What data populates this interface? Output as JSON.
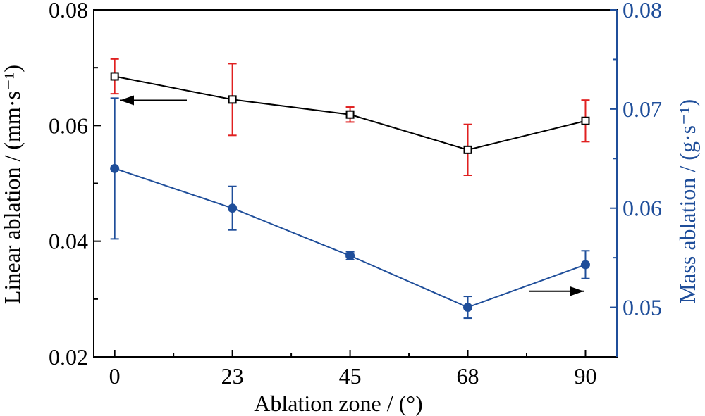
{
  "chart_data": {
    "type": "line",
    "xlabel": "Ablation zone / (°)",
    "ylabel_left": "Linear ablation / (mm·s⁻¹)",
    "ylabel_right": "Mass ablation / (g·s⁻¹)",
    "x_ticks": [
      "0",
      "23",
      "45",
      "68",
      "90"
    ],
    "xlim": [
      -4,
      96
    ],
    "ylim_left": [
      0.02,
      0.08
    ],
    "ylim_right": [
      0.045,
      0.08
    ],
    "y_ticks_left": [
      "0.02",
      "0.04",
      "0.06",
      "0.08"
    ],
    "y_ticks_right": [
      "0.05",
      "0.06",
      "0.07",
      "0.08"
    ],
    "grid": false,
    "series": [
      {
        "axis": "left",
        "marker": "open-square",
        "line_color": "#000000",
        "error_color": "#e02020",
        "x": [
          0,
          22.5,
          45,
          67.5,
          90
        ],
        "y": [
          0.0685,
          0.0645,
          0.0619,
          0.0558,
          0.0608
        ],
        "err": [
          0.003,
          0.0062,
          0.0013,
          0.0044,
          0.0036
        ]
      },
      {
        "axis": "right",
        "marker": "filled-circle",
        "line_color": "#1f4e9a",
        "error_color": "#1f4e9a",
        "x": [
          0,
          22.5,
          45,
          67.5,
          90
        ],
        "y": [
          0.064,
          0.06,
          0.0552,
          0.05,
          0.0543
        ],
        "err": [
          0.0071,
          0.0022,
          0.0004,
          0.0011,
          0.0014
        ]
      }
    ],
    "arrows": [
      {
        "series": 0,
        "direction": "left"
      },
      {
        "series": 1,
        "direction": "right"
      }
    ]
  },
  "colors": {
    "left_axis": "#000000",
    "right_axis": "#1f4e9a",
    "error_left": "#e02020"
  }
}
